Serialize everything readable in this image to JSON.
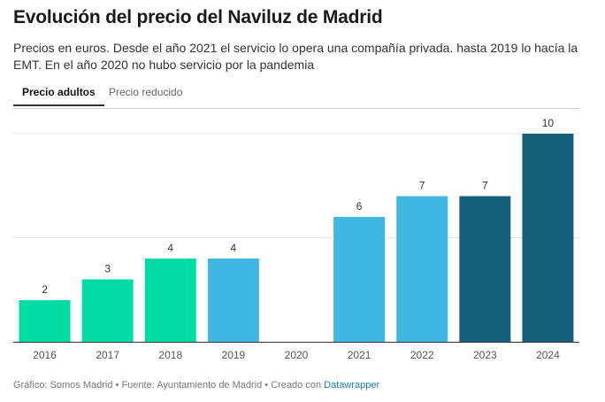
{
  "header": {
    "title": "Evolución del precio del Naviluz de Madrid",
    "subtitle": "Precios en euros. Desde el año 2021 el servicio lo opera una compañía privada. hasta 2019 lo hacía la EMT. En el año 2020 no hubo servicio por la pandemia"
  },
  "tabs": [
    {
      "label": "Precio adultos",
      "active": true
    },
    {
      "label": "Precio reducido",
      "active": false
    }
  ],
  "footer": {
    "text": "Gráfico: Somos Madrid • Fuente: Ayuntamiento de Madrid • Creado con ",
    "link": "Datawrapper"
  },
  "chart_data": {
    "type": "bar",
    "categories": [
      "2016",
      "2017",
      "2018",
      "2019",
      "2020",
      "2021",
      "2022",
      "2023",
      "2024"
    ],
    "values": [
      2,
      3,
      4,
      4,
      null,
      6,
      7,
      7,
      10
    ],
    "labels": [
      "2",
      "3",
      "4",
      "4",
      "",
      "6",
      "7",
      "7",
      "10"
    ],
    "colors": [
      "#00dca3",
      "#00dca3",
      "#00dca3",
      "#40b6e2",
      "#40b6e2",
      "#40b6e2",
      "#40b6e2",
      "#15607a",
      "#15607a"
    ],
    "ylim": [
      0,
      10
    ],
    "gridlines": [
      0,
      5,
      10
    ],
    "grid": true,
    "title": "",
    "xlabel": "",
    "ylabel": ""
  }
}
